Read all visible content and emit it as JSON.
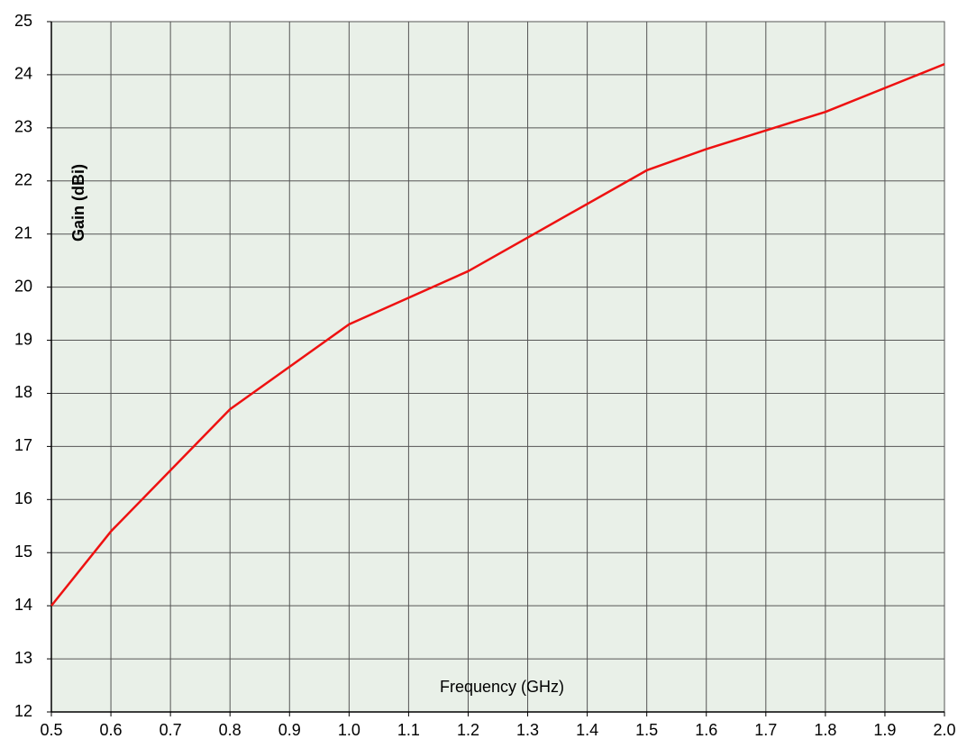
{
  "chart_data": {
    "type": "line",
    "ylabel": "Gain (dBi)",
    "xlabel": "Frequency (GHz)",
    "x": [
      0.5,
      0.6,
      0.8,
      1.0,
      1.2,
      1.5,
      1.6,
      1.8,
      2.0
    ],
    "values": [
      14.0,
      15.4,
      17.7,
      19.3,
      20.3,
      22.2,
      22.6,
      23.3,
      24.2
    ],
    "color": "#ee1111",
    "xlim": [
      0.5,
      2.0
    ],
    "xticks": [
      0.5,
      0.6,
      0.7,
      0.8,
      0.9,
      {
        "value": 1,
        "label": "1.0"
      },
      1.1,
      1.2,
      1.3,
      1.4,
      1.5,
      1.6,
      1.7,
      1.8,
      1.9,
      {
        "value": 2,
        "label": "2.0"
      }
    ],
    "ylim": [
      12,
      25
    ],
    "yticks": [
      12,
      13,
      14,
      15,
      16,
      17,
      18,
      19,
      20,
      21,
      22,
      23,
      24,
      25
    ],
    "grid": true
  }
}
